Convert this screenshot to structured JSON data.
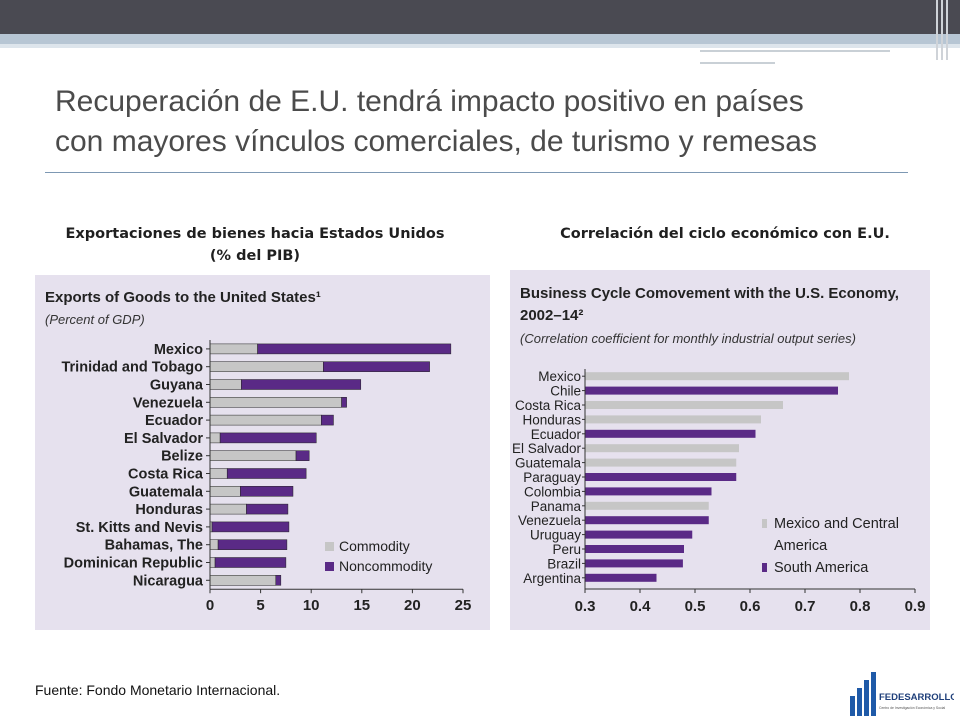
{
  "slide": {
    "title_line1": "Recuperación de E.U. tendrá impacto positivo en países",
    "title_line2": "con mayores vínculos comerciales, de turismo y remesas",
    "source": "Fuente: Fondo Monetario Internacional."
  },
  "left_caption": {
    "line1": "Exportaciones de bienes hacia Estados Unidos",
    "line2": "(% del PIB)"
  },
  "right_caption": {
    "line1": "Correlación del ciclo económico con E.U."
  },
  "logo": {
    "name": "FEDESARROLLO",
    "tagline": "Centro de Investigación Económica y Social"
  },
  "colors": {
    "gray_bar": "#c6c6c6",
    "purple_bar": "#5a2a86",
    "panel_bg": "#e6e1ee"
  },
  "chart_data": [
    {
      "type": "bar",
      "orientation": "horizontal",
      "stacked": true,
      "title": "Exports of Goods to the United States¹",
      "subtitle": "(Percent of GDP)",
      "categories": [
        "Mexico",
        "Trinidad and Tobago",
        "Guyana",
        "Venezuela",
        "Ecuador",
        "El Salvador",
        "Belize",
        "Costa Rica",
        "Guatemala",
        "Honduras",
        "St. Kitts and Nevis",
        "Bahamas, The",
        "Dominican Republic",
        "Nicaragua"
      ],
      "series": [
        {
          "name": "Commodity",
          "color": "#c6c6c6",
          "values": [
            4.7,
            11.2,
            3.1,
            13.0,
            11.0,
            1.0,
            8.5,
            1.7,
            3.0,
            3.6,
            0.2,
            0.8,
            0.5,
            6.5
          ]
        },
        {
          "name": "Noncommodity",
          "color": "#5a2a86",
          "values": [
            19.1,
            10.5,
            11.8,
            0.5,
            1.2,
            9.5,
            1.3,
            7.8,
            5.2,
            4.1,
            7.6,
            6.8,
            7.0,
            0.5
          ]
        }
      ],
      "xlim": [
        0,
        25
      ],
      "xticks": [
        "0",
        "5",
        "10",
        "15",
        "20",
        "25"
      ]
    },
    {
      "type": "bar",
      "orientation": "horizontal",
      "title": "Business Cycle Comovement with the U.S. Economy,",
      "title_line2": "2002–14²",
      "subtitle": "(Correlation coefficient for monthly industrial output series)",
      "categories": [
        "Mexico",
        "Chile",
        "Costa Rica",
        "Honduras",
        "Ecuador",
        "El Salvador",
        "Guatemala",
        "Paraguay",
        "Colombia",
        "Panama",
        "Venezuela",
        "Uruguay",
        "Peru",
        "Brazil",
        "Argentina"
      ],
      "values": [
        0.78,
        0.76,
        0.66,
        0.62,
        0.61,
        0.58,
        0.575,
        0.575,
        0.53,
        0.525,
        0.525,
        0.495,
        0.48,
        0.478,
        0.43
      ],
      "groups": [
        "Mexico and Central America",
        "South America",
        "Mexico and Central America",
        "Mexico and Central America",
        "South America",
        "Mexico and Central America",
        "Mexico and Central America",
        "South America",
        "South America",
        "Mexico and Central America",
        "South America",
        "South America",
        "South America",
        "South America",
        "South America"
      ],
      "legend": [
        {
          "name": "Mexico and Central",
          "name_line2": "America",
          "color": "#c6c6c6"
        },
        {
          "name": "South America",
          "color": "#5a2a86"
        }
      ],
      "xlim": [
        0.3,
        0.9
      ],
      "xticks": [
        "0.3",
        "0.4",
        "0.5",
        "0.6",
        "0.7",
        "0.8",
        "0.9"
      ]
    }
  ]
}
